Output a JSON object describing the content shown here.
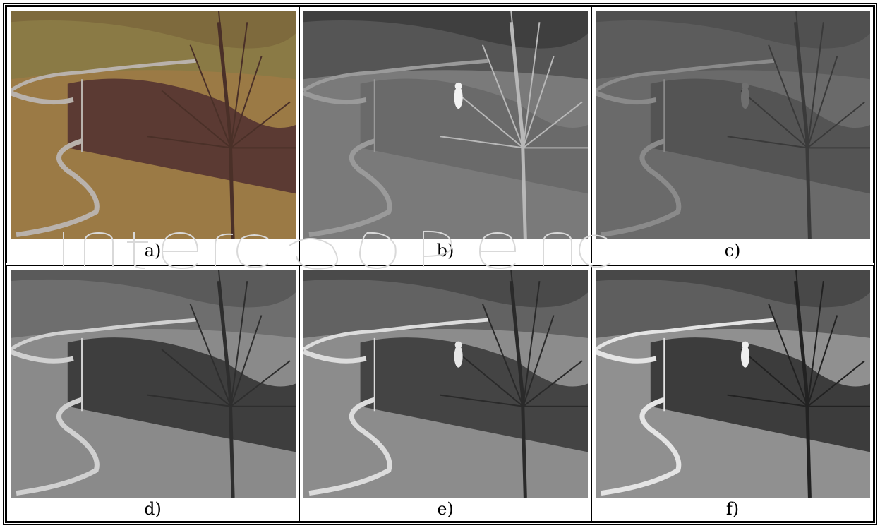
{
  "panels": [
    {
      "caption": "a)",
      "kind": "color"
    },
    {
      "caption": "b)",
      "kind": "thermal"
    },
    {
      "caption": "c)",
      "kind": "gray-lowcontrast"
    },
    {
      "caption": "d)",
      "kind": "gray-visible"
    },
    {
      "caption": "e)",
      "kind": "fused"
    },
    {
      "caption": "f)",
      "kind": "fused-sharp"
    }
  ],
  "colors": {
    "border": "#000000",
    "color_grass": "#9b7a45",
    "color_trees": "#5b3a33",
    "color_path": "#b9b2ac",
    "thermal_bg": "#6f6f6f",
    "thermal_target": "#f2f2f2"
  }
}
